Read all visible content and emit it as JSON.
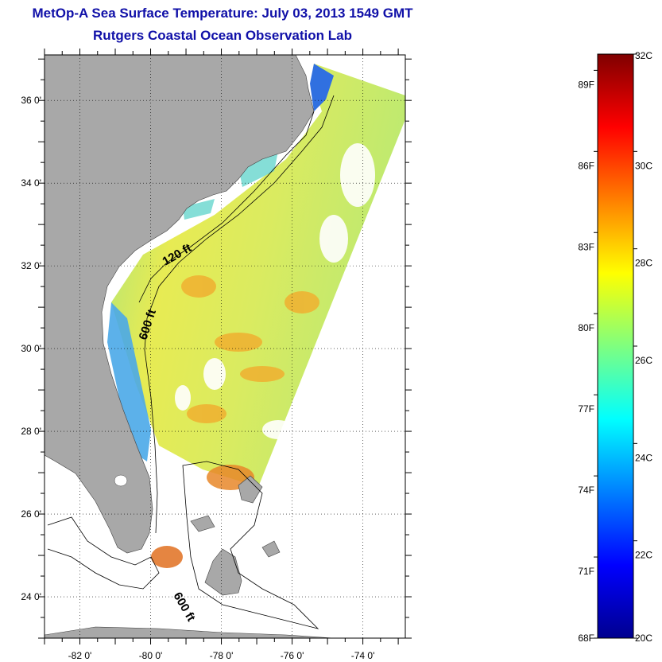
{
  "header": {
    "title": "MetOp-A Sea Surface Temperature:  July 03, 2013 1549 GMT",
    "subtitle": "Rutgers Coastal Ocean Observation Lab"
  },
  "map": {
    "lat_labels": [
      "36 0'",
      "34 0'",
      "32 0'",
      "30 0'",
      "28 0'",
      "26 0'",
      "24 0'"
    ],
    "lon_labels": [
      "-82 0'",
      "-80 0'",
      "-78 0'",
      "-76 0'",
      "-74 0'"
    ],
    "lon_range": [
      -83,
      -72.8
    ],
    "lat_range": [
      23.0,
      37.1
    ],
    "isobath_labels": [
      {
        "text": "120 ft"
      },
      {
        "text": "600 ft"
      },
      {
        "text": "600 ft"
      }
    ],
    "colors": {
      "land": "#a8a8a8",
      "ocean_nodata": "#ffffff",
      "grid": "#000000"
    }
  },
  "colorbar": {
    "fahrenheit_labels": [
      "89F",
      "86F",
      "83F",
      "80F",
      "77F",
      "74F",
      "71F",
      "68F"
    ],
    "celsius_labels": [
      "32C",
      "30C",
      "28C",
      "26C",
      "24C",
      "22C",
      "20C"
    ],
    "range_c": [
      20,
      32
    ],
    "colormap": "jet"
  }
}
